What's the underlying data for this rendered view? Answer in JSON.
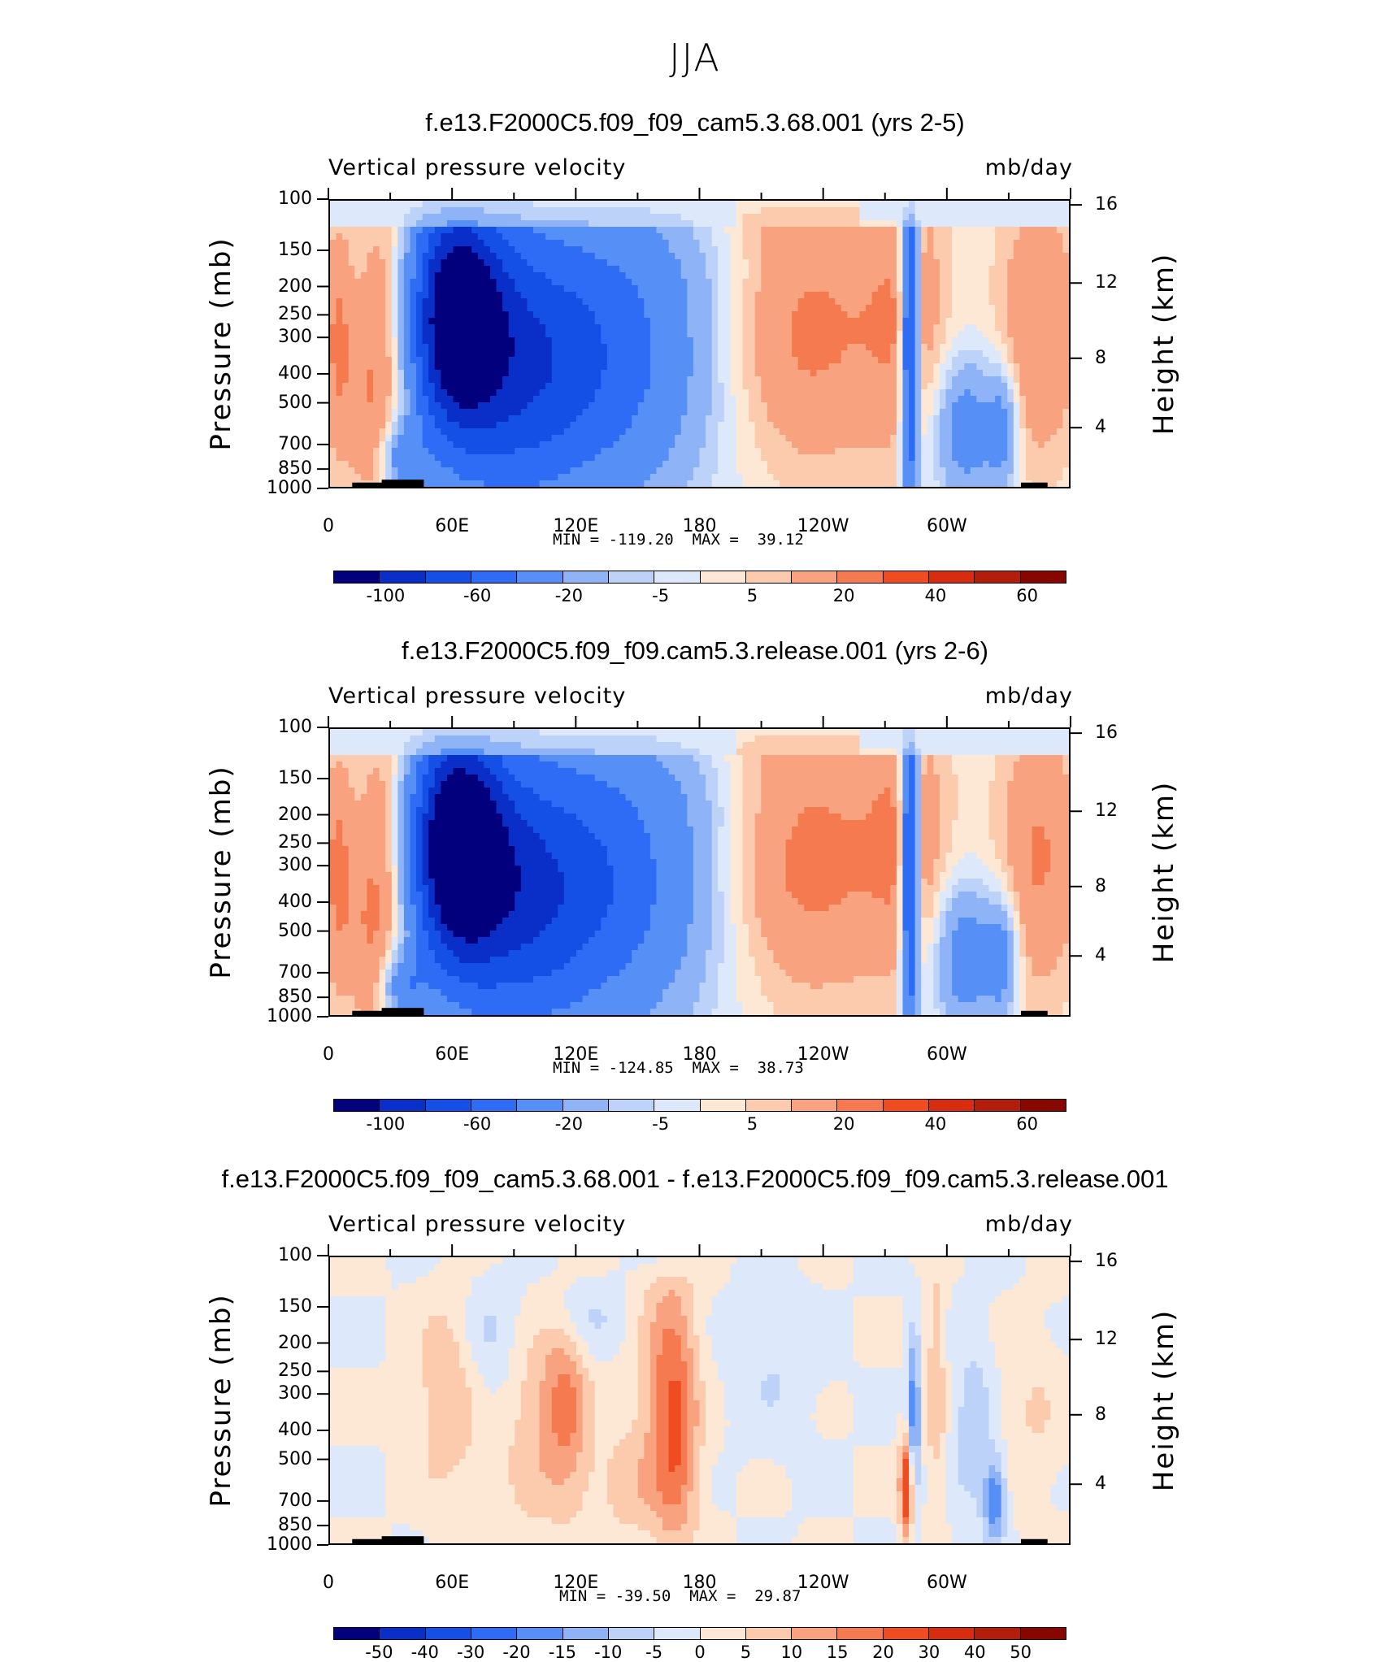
{
  "figure_title": "JJA",
  "chart_data": [
    {
      "type": "heatmap",
      "title": "f.e13.F2000C5.f09_f09_cam5.3.68.001 (yrs 2-5)",
      "variable": "Vertical pressure velocity",
      "units": "mb/day",
      "ylabel": "Pressure (mb)",
      "y2label": "Height (km)",
      "x_ticks": [
        "0",
        "60E",
        "120E",
        "180",
        "120W",
        "60W"
      ],
      "y_ticks": [
        "100",
        "150",
        "200",
        "250",
        "300",
        "400",
        "500",
        "700",
        "850",
        "1000"
      ],
      "y2_ticks": [
        "16",
        "12",
        "8",
        "4"
      ],
      "min_label": "MIN = -119.20",
      "max_label": "MAX =  39.12",
      "min": -119.2,
      "max": 39.12,
      "colorbar_labels": [
        "-100",
        "-60",
        "-20",
        "-5",
        "5",
        "20",
        "40",
        "60"
      ],
      "colorbar_levels": [
        -100,
        -80,
        -60,
        -40,
        -20,
        -10,
        -5,
        0,
        5,
        10,
        20,
        30,
        40,
        50,
        60
      ]
    },
    {
      "type": "heatmap",
      "title": "f.e13.F2000C5.f09_f09.cam5.3.release.001 (yrs 2-6)",
      "variable": "Vertical pressure velocity",
      "units": "mb/day",
      "ylabel": "Pressure (mb)",
      "y2label": "Height (km)",
      "x_ticks": [
        "0",
        "60E",
        "120E",
        "180",
        "120W",
        "60W"
      ],
      "y_ticks": [
        "100",
        "150",
        "200",
        "250",
        "300",
        "400",
        "500",
        "700",
        "850",
        "1000"
      ],
      "y2_ticks": [
        "16",
        "12",
        "8",
        "4"
      ],
      "min_label": "MIN = -124.85",
      "max_label": "MAX =  38.73",
      "min": -124.85,
      "max": 38.73,
      "colorbar_labels": [
        "-100",
        "-60",
        "-20",
        "-5",
        "5",
        "20",
        "40",
        "60"
      ],
      "colorbar_levels": [
        -100,
        -80,
        -60,
        -40,
        -20,
        -10,
        -5,
        0,
        5,
        10,
        20,
        30,
        40,
        50,
        60
      ]
    },
    {
      "type": "heatmap",
      "title": "f.e13.F2000C5.f09_f09_cam5.3.68.001 - f.e13.F2000C5.f09_f09.cam5.3.release.001",
      "variable": "Vertical pressure velocity",
      "units": "mb/day",
      "ylabel": "Pressure (mb)",
      "y2label": "Height (km)",
      "x_ticks": [
        "0",
        "60E",
        "120E",
        "180",
        "120W",
        "60W"
      ],
      "y_ticks": [
        "100",
        "150",
        "200",
        "250",
        "300",
        "400",
        "500",
        "700",
        "850",
        "1000"
      ],
      "y2_ticks": [
        "16",
        "12",
        "8",
        "4"
      ],
      "min_label": "MIN = -39.50",
      "max_label": "MAX =  29.87",
      "min": -39.5,
      "max": 29.87,
      "colorbar_labels": [
        "-50",
        "-40",
        "-30",
        "-20",
        "-15",
        "-10",
        "-5",
        "0",
        "5",
        "10",
        "15",
        "20",
        "30",
        "40",
        "50"
      ],
      "colorbar_levels": [
        -50,
        -40,
        -30,
        -20,
        -15,
        -10,
        -5,
        0,
        5,
        10,
        15,
        20,
        30,
        40,
        50
      ]
    }
  ],
  "colors": {
    "colorbar": [
      "#03007e",
      "#0a2fc8",
      "#1450e6",
      "#2f6cf5",
      "#5690f6",
      "#8fb3f7",
      "#bcd2f8",
      "#dde9fb",
      "#fde8d6",
      "#fccaad",
      "#f9a27f",
      "#f57a4f",
      "#f04c22",
      "#d72c10",
      "#b31d0b",
      "#870600"
    ]
  }
}
